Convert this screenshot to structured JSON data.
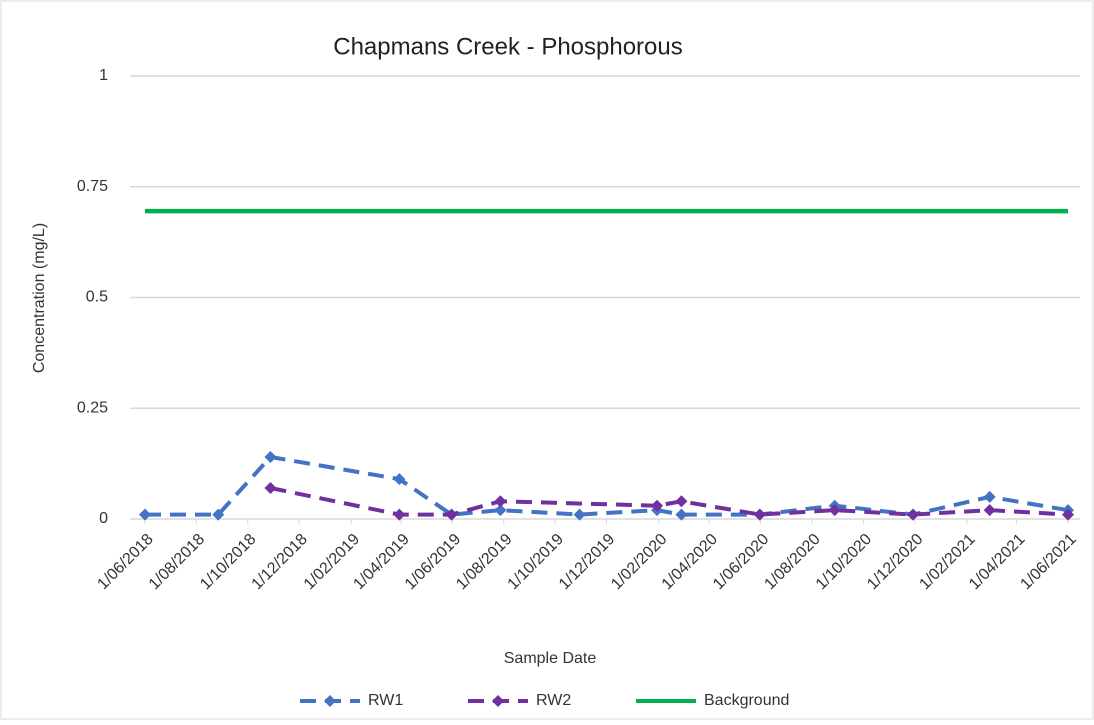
{
  "chart_data": {
    "type": "line",
    "title": "Chapmans Creek - Phosphorous",
    "x_label": "Sample Date",
    "y_label": "Concentration (mg/L)",
    "ylim": [
      0,
      1
    ],
    "yticks": [
      0,
      {
        "value": 0.25,
        "label": "0.25"
      },
      {
        "value": 0.5,
        "label": "0.5"
      },
      {
        "value": 0.75,
        "label": "0.75"
      },
      1
    ],
    "xlim": [
      "2018-06-01",
      "2021-06-01"
    ],
    "xticks": [
      {
        "value": "2018-06-01",
        "label": "1/06/2018"
      },
      {
        "value": "2018-08-01",
        "label": "1/08/2018"
      },
      {
        "value": "2018-10-01",
        "label": "1/10/2018"
      },
      {
        "value": "2018-12-01",
        "label": "1/12/2018"
      },
      {
        "value": "2019-02-01",
        "label": "1/02/2019"
      },
      {
        "value": "2019-04-01",
        "label": "1/04/2019"
      },
      {
        "value": "2019-06-01",
        "label": "1/06/2019"
      },
      {
        "value": "2019-08-01",
        "label": "1/08/2019"
      },
      {
        "value": "2019-10-01",
        "label": "1/10/2019"
      },
      {
        "value": "2019-12-01",
        "label": "1/12/2019"
      },
      {
        "value": "2020-02-01",
        "label": "1/02/2020"
      },
      {
        "value": "2020-04-01",
        "label": "1/04/2020"
      },
      {
        "value": "2020-06-01",
        "label": "1/06/2020"
      },
      {
        "value": "2020-08-01",
        "label": "1/08/2020"
      },
      {
        "value": "2020-10-01",
        "label": "1/10/2020"
      },
      {
        "value": "2020-12-01",
        "label": "1/12/2020"
      },
      {
        "value": "2021-02-01",
        "label": "1/02/2021"
      },
      {
        "value": "2021-04-01",
        "label": "1/04/2021"
      },
      {
        "value": "2021-06-01",
        "label": "1/06/2021"
      }
    ],
    "grid": true,
    "legend": "bottom",
    "series": [
      {
        "name": "RW1",
        "color": "#4472c4",
        "dashed": true,
        "marker": "diamond",
        "x": [
          "2018-06-01",
          "2018-08-27",
          "2018-10-28",
          "2019-03-30",
          "2019-05-31",
          "2019-07-28",
          "2019-10-30",
          "2020-01-30",
          "2020-02-28",
          "2020-05-31",
          "2020-08-28",
          "2020-11-29",
          "2021-02-28",
          "2021-06-01"
        ],
        "values": [
          0.01,
          0.01,
          0.14,
          0.09,
          0.01,
          0.02,
          0.01,
          0.02,
          0.01,
          0.01,
          0.03,
          0.01,
          0.05,
          0.02
        ]
      },
      {
        "name": "RW2",
        "color": "#7030a0",
        "dashed": true,
        "marker": "diamond",
        "x": [
          "2018-10-28",
          "2019-03-30",
          "2019-05-31",
          "2019-07-28",
          "2020-01-30",
          "2020-02-28",
          "2020-05-31",
          "2020-08-28",
          "2020-11-29",
          "2021-02-28",
          "2021-06-01"
        ],
        "values": [
          0.07,
          0.01,
          0.01,
          0.04,
          0.03,
          0.04,
          0.01,
          0.02,
          0.01,
          0.02,
          0.01
        ]
      },
      {
        "name": "Background",
        "color": "#00b050",
        "dashed": false,
        "marker": "none",
        "x": [
          "2018-06-01",
          "2021-06-01"
        ],
        "values": [
          0.695,
          0.695
        ]
      }
    ]
  }
}
